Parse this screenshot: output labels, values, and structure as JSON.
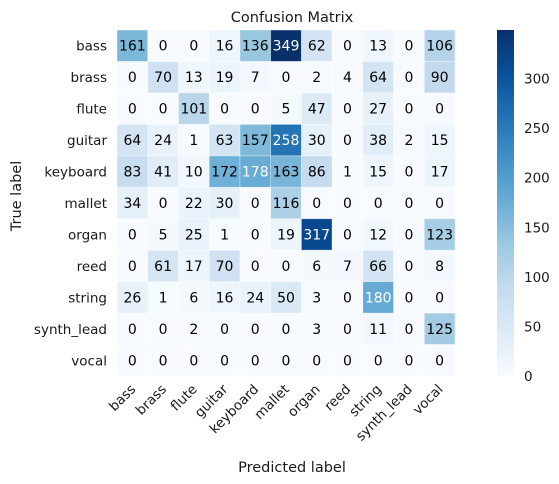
{
  "chart_data": {
    "type": "heatmap",
    "title": "Confusion Matrix",
    "xlabel": "Predicted label",
    "ylabel": "True label",
    "x_categories": [
      "bass",
      "brass",
      "flute",
      "guitar",
      "keyboard",
      "mallet",
      "organ",
      "reed",
      "string",
      "synth_lead",
      "vocal"
    ],
    "y_categories": [
      "bass",
      "brass",
      "flute",
      "guitar",
      "keyboard",
      "mallet",
      "organ",
      "reed",
      "string",
      "synth_lead",
      "vocal"
    ],
    "values": [
      [
        161,
        0,
        0,
        16,
        136,
        349,
        62,
        0,
        13,
        0,
        106
      ],
      [
        0,
        70,
        13,
        19,
        7,
        0,
        2,
        4,
        64,
        0,
        90
      ],
      [
        0,
        0,
        101,
        0,
        0,
        5,
        47,
        0,
        27,
        0,
        0
      ],
      [
        64,
        24,
        1,
        63,
        157,
        258,
        30,
        0,
        38,
        2,
        15
      ],
      [
        83,
        41,
        10,
        172,
        178,
        163,
        86,
        1,
        15,
        0,
        17
      ],
      [
        34,
        0,
        22,
        30,
        0,
        116,
        0,
        0,
        0,
        0,
        0
      ],
      [
        0,
        5,
        25,
        1,
        0,
        19,
        317,
        0,
        12,
        0,
        123
      ],
      [
        0,
        61,
        17,
        70,
        0,
        0,
        6,
        7,
        66,
        0,
        8
      ],
      [
        26,
        1,
        6,
        16,
        24,
        50,
        3,
        0,
        180,
        0,
        0
      ],
      [
        0,
        0,
        2,
        0,
        0,
        0,
        3,
        0,
        11,
        0,
        125
      ],
      [
        0,
        0,
        0,
        0,
        0,
        0,
        0,
        0,
        0,
        0,
        0
      ]
    ],
    "colormap": "Blues",
    "vmin": 0,
    "vmax": 349,
    "colorbar_ticks": [
      0,
      50,
      100,
      150,
      200,
      250,
      300
    ],
    "grid": true,
    "colors": {
      "low": "#f7fbff",
      "high": "#08306b",
      "text_dark": "#000000",
      "text_light": "#ffffff"
    }
  }
}
